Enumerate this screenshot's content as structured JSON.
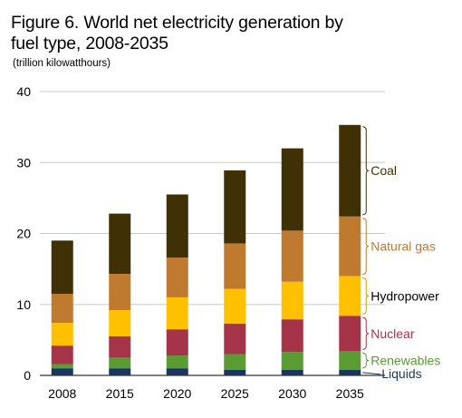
{
  "chart_data": {
    "type": "bar",
    "stacked": true,
    "title": "Figure 6. World net electricity generation by fuel type, 2008-2035",
    "subtitle": "(trillion kilowatthours)",
    "categories": [
      "2008",
      "2015",
      "2020",
      "2025",
      "2030",
      "2035"
    ],
    "ylim": [
      0,
      40
    ],
    "yticks": [
      0,
      10,
      20,
      30,
      40
    ],
    "grid": true,
    "legend": "right, bracket labels beside last bar",
    "series": [
      {
        "name": "Liquids",
        "color": "#17375e",
        "label_color": "#17375e",
        "values": [
          1.0,
          1.0,
          1.0,
          0.8,
          0.8,
          0.8
        ]
      },
      {
        "name": "Renewables",
        "color": "#5a9b32",
        "label_color": "#5a9b32",
        "values": [
          0.6,
          1.5,
          1.8,
          2.2,
          2.5,
          2.6
        ]
      },
      {
        "name": "Nuclear",
        "color": "#a5344a",
        "label_color": "#a5344a",
        "values": [
          2.6,
          3.0,
          3.7,
          4.3,
          4.6,
          5.0
        ]
      },
      {
        "name": "Hydropower",
        "color": "#ffc000",
        "label_color": "#000000",
        "values": [
          3.2,
          3.7,
          4.5,
          4.9,
          5.3,
          5.6
        ]
      },
      {
        "name": "Natural gas",
        "color": "#c07a2f",
        "label_color": "#c07a2f",
        "values": [
          4.1,
          5.1,
          5.6,
          6.4,
          7.2,
          8.4
        ]
      },
      {
        "name": "Coal",
        "color": "#3f3006",
        "label_color": "#3f3006",
        "values": [
          7.5,
          8.5,
          8.9,
          10.3,
          11.6,
          12.9
        ]
      }
    ]
  }
}
